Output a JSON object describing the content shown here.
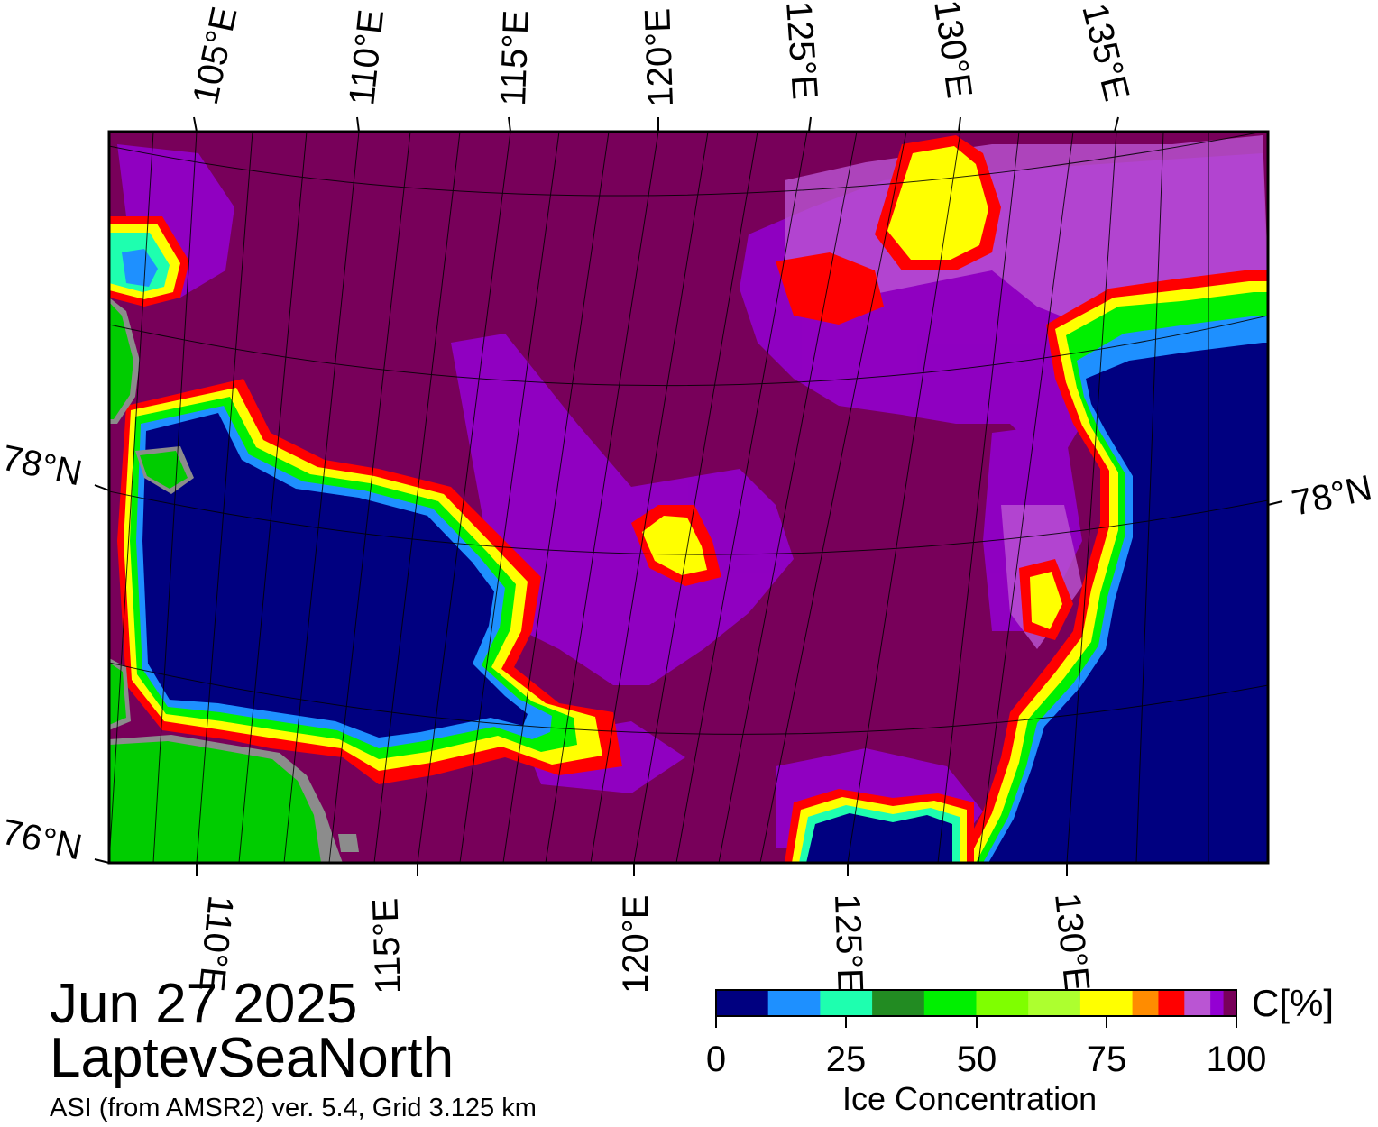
{
  "map": {
    "title_date": "Jun 27 2025",
    "region": "LaptevSeaNorth",
    "source": "ASI (from AMSR2) ver. 5.4,  Grid 3.125 km",
    "top_lon_labels": [
      "105°E",
      "110°E",
      "115°E",
      "120°E",
      "125°E",
      "130°E",
      "135°E"
    ],
    "bottom_lon_labels": [
      "110°E",
      "115°E",
      "120°E",
      "125°E",
      "130°E"
    ],
    "lat_labels": {
      "left": [
        "78°N",
        "76°N"
      ],
      "right": [
        "78°N"
      ]
    },
    "colors": {
      "open_water": "#000080",
      "ice_100": "#78005a",
      "land": "#00cc00",
      "coast_gray": "#8c8c8c",
      "frame": "#000000"
    }
  },
  "colorbar": {
    "unit": "C[%]",
    "title": "Ice Concentration",
    "ticks": [
      "0",
      "25",
      "50",
      "75",
      "100"
    ],
    "colors": [
      "#000080",
      "#1e90ff",
      "#1effaf",
      "#228b22",
      "#00f000",
      "#7fff00",
      "#adff2f",
      "#ffff00",
      "#ff8c00",
      "#ff0000",
      "#ba55d3",
      "#9400d3",
      "#78005a"
    ]
  }
}
